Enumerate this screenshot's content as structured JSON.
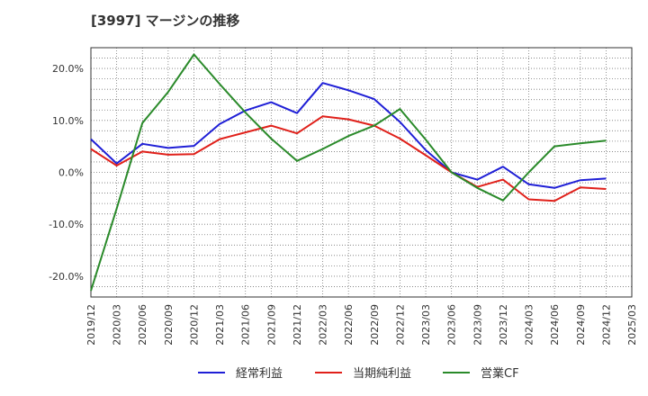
{
  "title": "[3997]  マージンの推移",
  "chart_data": {
    "type": "line",
    "title": "[3997]  マージンの推移",
    "x": [
      "2019/12",
      "2020/03",
      "2020/06",
      "2020/09",
      "2020/12",
      "2021/03",
      "2021/06",
      "2021/09",
      "2021/12",
      "2022/03",
      "2022/06",
      "2022/09",
      "2022/12",
      "2023/03",
      "2023/06",
      "2023/09",
      "2023/12",
      "2024/03",
      "2024/06",
      "2024/09",
      "2024/12",
      "2025/03"
    ],
    "ytick_labels": [
      "20.0%",
      "10.0%",
      "0.0%",
      "-10.0%",
      "-20.0%"
    ],
    "ytick_values": [
      20,
      10,
      0,
      -10,
      -20
    ],
    "ylim": [
      -24,
      24
    ],
    "grid": true,
    "legend_position": "bottom",
    "series": [
      {
        "name": "経常利益",
        "color": "#1f1fd6",
        "values": [
          6.4,
          1.7,
          5.5,
          4.7,
          5.1,
          9.3,
          11.9,
          13.5,
          11.4,
          17.2,
          15.8,
          14.1,
          9.7,
          4.3,
          0.0,
          -1.4,
          1.1,
          -2.3,
          -3.0,
          -1.5,
          -1.2,
          null
        ]
      },
      {
        "name": "当期純利益",
        "color": "#e0201a",
        "values": [
          4.5,
          1.3,
          4.0,
          3.4,
          3.5,
          6.4,
          7.7,
          9.0,
          7.5,
          10.8,
          10.2,
          9.0,
          6.5,
          3.3,
          0.0,
          -2.8,
          -1.4,
          -5.2,
          -5.5,
          -2.9,
          -3.2,
          null
        ]
      },
      {
        "name": "営業CF",
        "color": "#2a8a2a",
        "values": [
          -22.8,
          -7.0,
          9.5,
          15.5,
          22.7,
          17.0,
          11.5,
          6.5,
          2.2,
          4.5,
          7.0,
          9.0,
          12.2,
          6.3,
          0.0,
          -3.0,
          -5.4,
          0.0,
          5.0,
          5.6,
          6.1,
          null
        ]
      }
    ]
  }
}
